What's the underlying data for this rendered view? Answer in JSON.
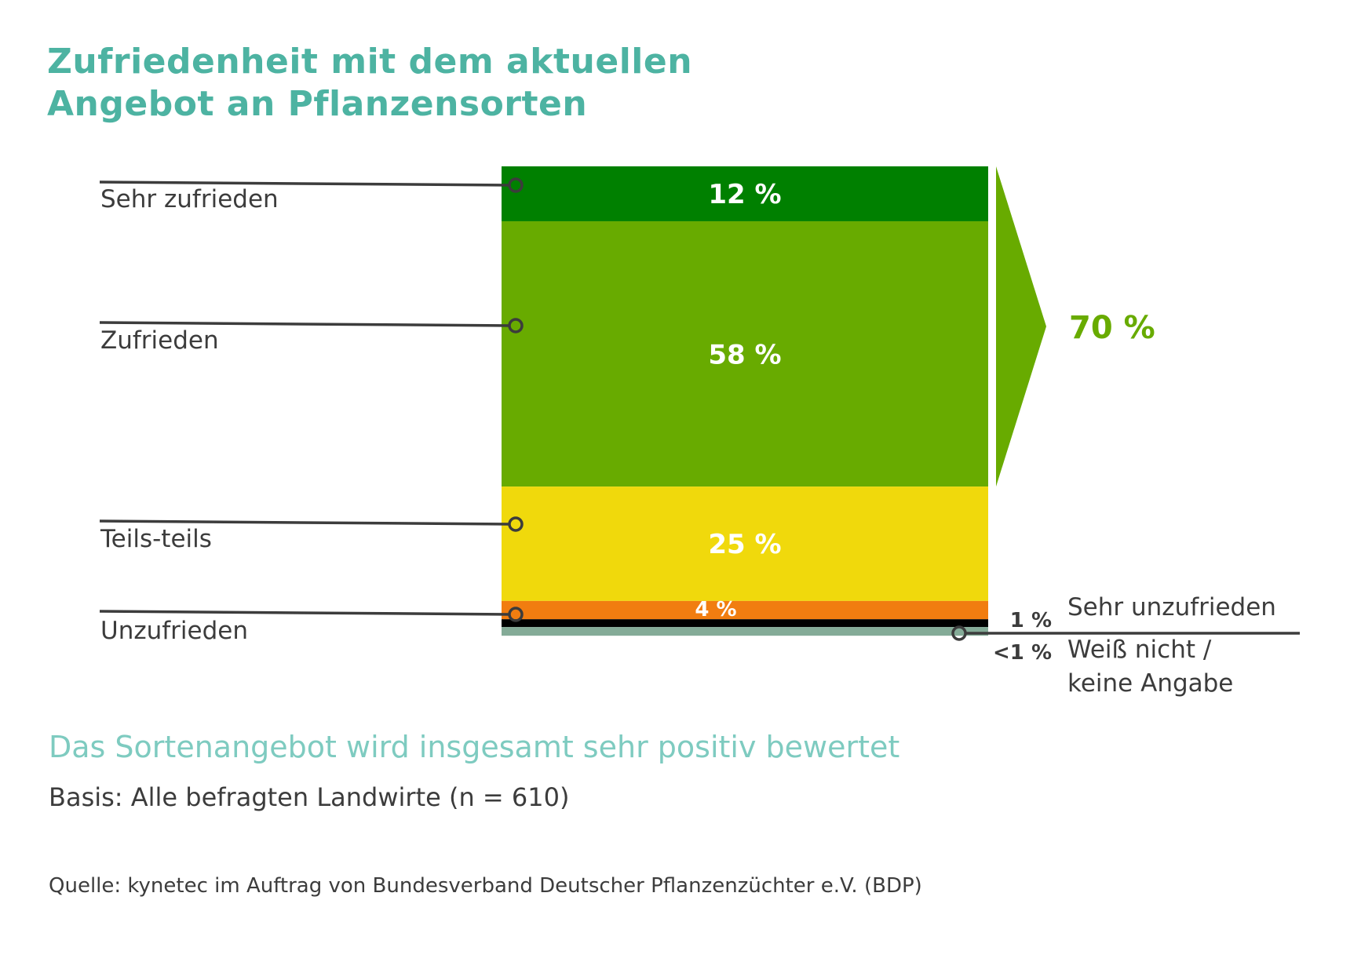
{
  "header": {
    "title_line1": "Zufriedenheit mit dem aktuellen",
    "title_line2": "Angebot an Pflanzensorten"
  },
  "footer": {
    "subtitle": "Das Sortenangebot wird insgesamt sehr positiv bewertet",
    "basis": "Basis: Alle befragten Landwirte (n = 610)",
    "source": "Quelle: kynetec im Auftrag von Bundesverband Deutscher Pflanzenzüchter e.V. (BDP)"
  },
  "chart_data": {
    "type": "bar",
    "orientation": "stacked-vertical-single",
    "title": "Zufriedenheit mit dem aktuellen Angebot an Pflanzensorten",
    "subtitle": "Das Sortenangebot wird insgesamt sehr positiv bewertet",
    "unit": "%",
    "categories": [
      "Sehr zufrieden",
      "Zufrieden",
      "Teils-teils",
      "Unzufrieden",
      "Sehr unzufrieden",
      "Weiß nicht / keine Angabe"
    ],
    "values": [
      12,
      58,
      25,
      4,
      1,
      0.5
    ],
    "value_labels": [
      "12 %",
      "58 %",
      "25 %",
      "4 %",
      "1 %",
      "<1 %"
    ],
    "colors": [
      "#008000",
      "#68ab00",
      "#f0d90c",
      "#f17d10",
      "#000000",
      "#84ab97"
    ],
    "bracket": {
      "label": "70 %",
      "covers": [
        "Sehr zufrieden",
        "Zufrieden"
      ],
      "value": 70,
      "color": "#68ab00"
    },
    "right_labels": {
      "very_unsatisfied": "Sehr unzufrieden",
      "dont_know_line1": "Weiß nicht /",
      "dont_know_line2": "keine Angabe"
    },
    "legend": "none",
    "grid": false
  }
}
